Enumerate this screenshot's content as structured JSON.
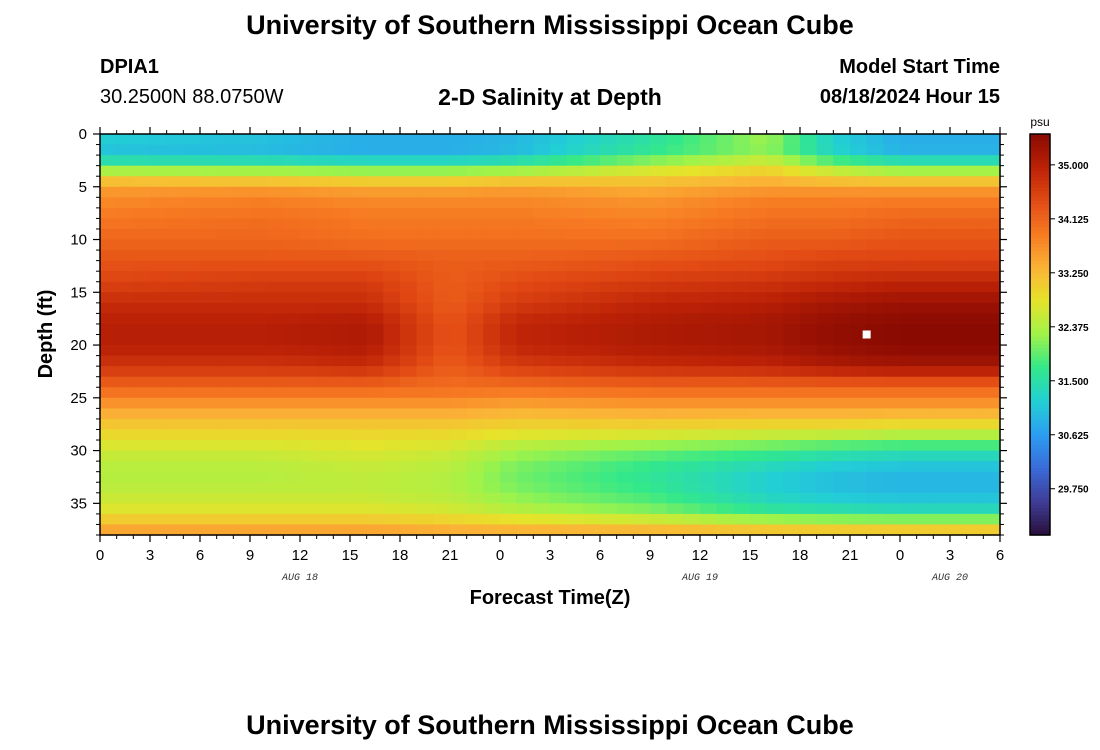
{
  "header": {
    "title": "University of Southern Mississippi Ocean Cube",
    "station_id": "DPIA1",
    "coordinates": "30.2500N  88.0750W",
    "subtitle": "2-D Salinity at Depth",
    "model_start_label": "Model Start Time",
    "model_start_value": "08/18/2024 Hour 15"
  },
  "footer": {
    "title": "University of Southern Mississippi Ocean Cube"
  },
  "chart_data": {
    "type": "heatmap",
    "title": "2-D Salinity at Depth",
    "xlabel": "Forecast Time(Z)",
    "ylabel": "Depth (ft)",
    "x_range_hours": [
      0,
      54
    ],
    "y_range_ft": [
      0,
      38
    ],
    "x_ticks": [
      "0",
      "3",
      "6",
      "9",
      "12",
      "15",
      "18",
      "21",
      "0",
      "3",
      "6",
      "9",
      "12",
      "15",
      "18",
      "21",
      "0",
      "3",
      "6"
    ],
    "y_ticks": [
      "0",
      "5",
      "10",
      "15",
      "20",
      "25",
      "30",
      "35"
    ],
    "date_labels": [
      {
        "text": "AUG 18",
        "hour": 12
      },
      {
        "text": "AUG 19",
        "hour": 36
      },
      {
        "text": "AUG 20",
        "hour": 51
      }
    ],
    "colorbar": {
      "units": "psu",
      "vmin": 29.0,
      "vmax": 35.5,
      "ticks": [
        "35.000",
        "34.125",
        "33.250",
        "32.375",
        "31.500",
        "30.625",
        "29.750"
      ],
      "colors": [
        "#2a0f3a",
        "#3f3d99",
        "#3a6bd8",
        "#2c9ef2",
        "#22cfd4",
        "#33e88a",
        "#9ff34a",
        "#e6e32a",
        "#fbb336",
        "#f77a22",
        "#e24a14",
        "#bb2106",
        "#8a0a02"
      ]
    },
    "marker": {
      "hour": 46,
      "depth_ft": 19,
      "color": "#ffffff"
    },
    "profile_depths_ft": [
      0,
      1,
      2,
      3,
      4,
      5,
      6,
      8,
      10,
      12,
      14,
      16,
      18,
      20,
      22,
      24,
      25,
      26,
      28,
      30,
      32,
      34,
      36,
      37,
      38
    ],
    "time_points_hours": [
      0,
      10,
      16,
      21,
      25,
      33,
      40,
      44,
      48,
      54
    ],
    "salinity_psu": [
      [
        31.3,
        31.0,
        31.1,
        31.8,
        32.9,
        33.5,
        33.7,
        33.9,
        34.1,
        34.3,
        34.5,
        34.8,
        35.0,
        35.0,
        34.7,
        34.1,
        33.8,
        33.5,
        33.0,
        32.6,
        32.4,
        32.5,
        32.8,
        33.3,
        33.6
      ],
      [
        31.1,
        30.9,
        31.0,
        31.8,
        32.8,
        33.5,
        33.8,
        34.0,
        34.1,
        34.3,
        34.6,
        34.8,
        35.0,
        35.0,
        34.7,
        34.1,
        33.8,
        33.5,
        33.0,
        32.6,
        32.4,
        32.5,
        32.8,
        33.3,
        33.6
      ],
      [
        30.9,
        30.7,
        30.9,
        31.7,
        32.7,
        33.4,
        33.7,
        33.9,
        34.0,
        34.3,
        34.6,
        34.8,
        35.1,
        35.1,
        34.8,
        34.1,
        33.8,
        33.5,
        33.0,
        32.7,
        32.5,
        32.5,
        32.8,
        33.3,
        33.6
      ],
      [
        30.9,
        30.7,
        30.9,
        31.7,
        32.7,
        33.4,
        33.7,
        33.9,
        34.0,
        34.2,
        34.2,
        34.2,
        34.3,
        34.3,
        34.2,
        34.0,
        33.8,
        33.5,
        33.0,
        32.6,
        32.4,
        32.4,
        32.7,
        33.2,
        33.5
      ],
      [
        31.0,
        30.8,
        31.1,
        31.8,
        32.8,
        33.5,
        33.7,
        33.9,
        34.0,
        34.2,
        34.4,
        34.6,
        34.9,
        34.9,
        34.6,
        34.0,
        33.7,
        33.4,
        32.9,
        32.3,
        32.0,
        32.1,
        32.5,
        33.1,
        33.5
      ],
      [
        31.6,
        31.5,
        31.8,
        32.4,
        33.0,
        33.3,
        33.6,
        33.8,
        34.0,
        34.3,
        34.6,
        34.9,
        35.1,
        35.1,
        34.8,
        34.1,
        33.8,
        33.5,
        32.9,
        32.0,
        31.6,
        31.7,
        32.2,
        33.0,
        33.5
      ],
      [
        32.4,
        32.1,
        32.3,
        32.8,
        33.2,
        33.5,
        33.8,
        34.0,
        34.2,
        34.4,
        34.7,
        35.0,
        35.2,
        35.2,
        34.9,
        34.1,
        33.8,
        33.5,
        32.8,
        31.8,
        31.2,
        31.2,
        31.7,
        32.8,
        33.4
      ],
      [
        31.3,
        31.1,
        31.4,
        32.2,
        32.9,
        33.5,
        33.8,
        34.0,
        34.2,
        34.5,
        34.8,
        35.2,
        35.4,
        35.4,
        35.1,
        34.1,
        33.8,
        33.5,
        32.8,
        31.6,
        31.0,
        31.0,
        31.6,
        32.7,
        33.4
      ],
      [
        30.9,
        30.7,
        31.0,
        31.8,
        32.8,
        33.5,
        33.8,
        34.1,
        34.3,
        34.5,
        34.9,
        35.3,
        35.5,
        35.5,
        35.2,
        34.1,
        33.8,
        33.5,
        32.7,
        31.5,
        30.9,
        30.9,
        31.5,
        32.7,
        33.4
      ],
      [
        30.9,
        30.7,
        31.0,
        31.8,
        32.8,
        33.5,
        33.8,
        34.1,
        34.3,
        34.5,
        34.9,
        35.3,
        35.5,
        35.5,
        35.2,
        34.1,
        33.8,
        33.5,
        32.7,
        31.5,
        30.9,
        30.9,
        31.5,
        32.7,
        33.4
      ]
    ]
  }
}
